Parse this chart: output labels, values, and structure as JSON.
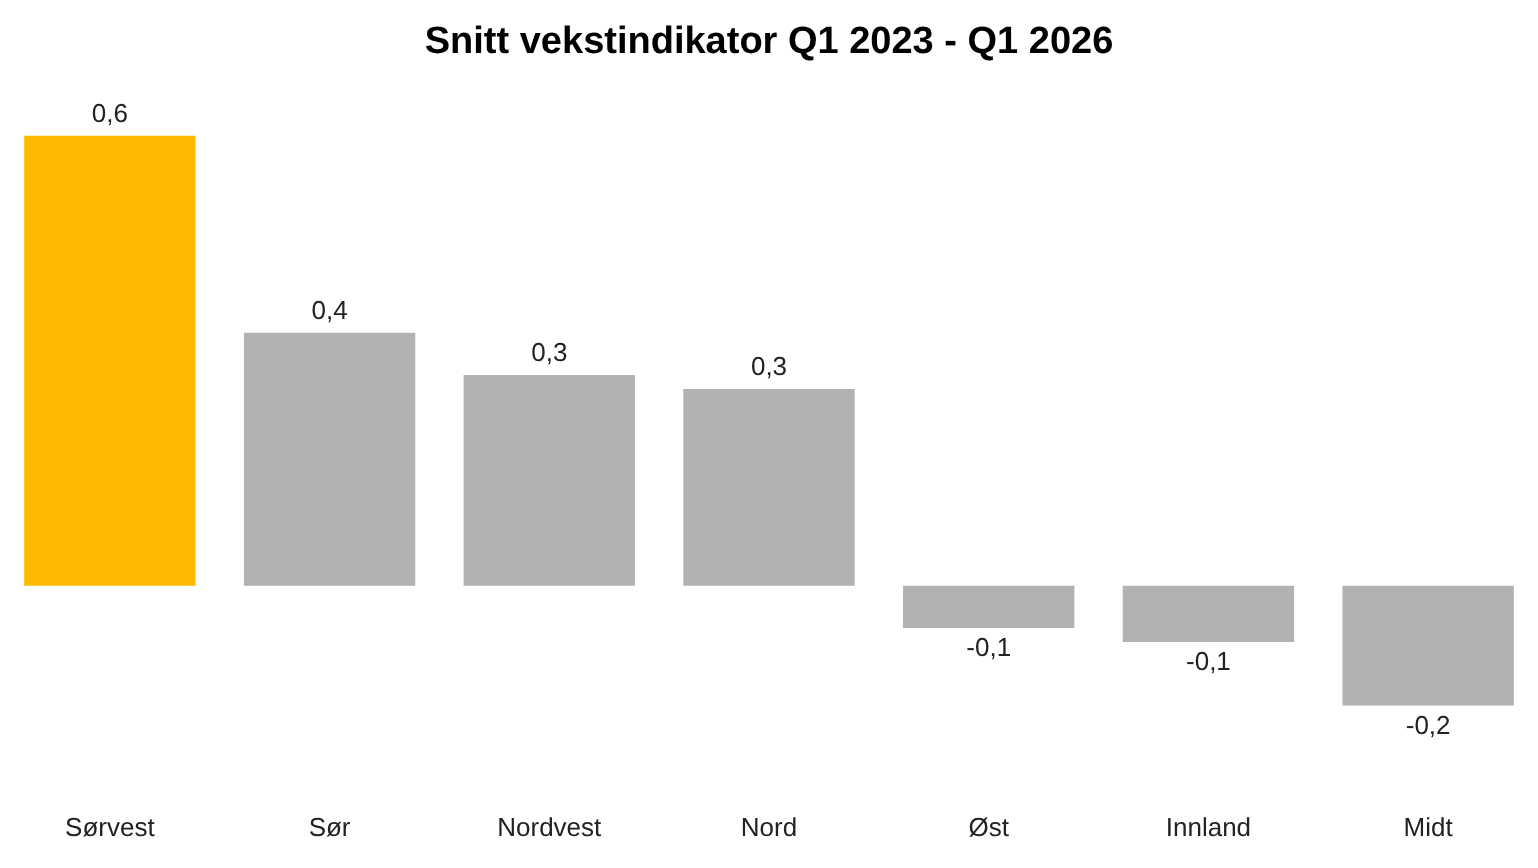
{
  "chart_data": {
    "type": "bar",
    "title": "Snitt vekstindikator Q1 2023 - Q1 2026",
    "categories": [
      "Sørvest",
      "Sør",
      "Nordvest",
      "Nord",
      "Øst",
      "Innland",
      "Midt"
    ],
    "values": [
      0.64,
      0.36,
      0.3,
      0.28,
      -0.06,
      -0.08,
      -0.17
    ],
    "value_labels": [
      "0,6",
      "0,4",
      "0,3",
      "0,3",
      "-0,1",
      "-0,1",
      "-0,2"
    ],
    "colors": [
      "#ffba00",
      "#b2b2b2",
      "#b2b2b2",
      "#b2b2b2",
      "#b2b2b2",
      "#b2b2b2",
      "#b2b2b2"
    ],
    "grid": false,
    "legend": false
  }
}
